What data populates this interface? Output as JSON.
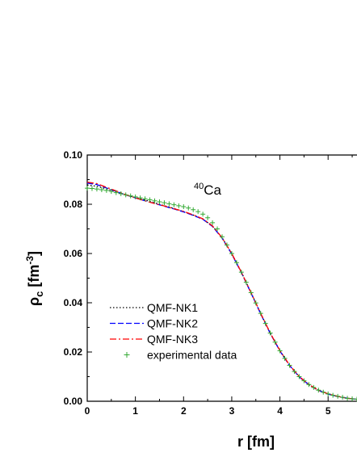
{
  "chart_data": {
    "type": "line",
    "title": "",
    "xlabel": "r [fm]",
    "ylabel": {
      "main": "ρ",
      "sub": "c",
      "unit": " [fm",
      "exp": "-3",
      "close": "]"
    },
    "xlim": [
      0,
      5.6
    ],
    "ylim": [
      0,
      0.1
    ],
    "xticks": [
      0,
      1,
      2,
      3,
      4,
      5
    ],
    "xtick_labels": [
      "0",
      "1",
      "2",
      "3",
      "4",
      "5"
    ],
    "yticks": [
      0,
      0.02,
      0.04,
      0.06,
      0.08,
      0.1
    ],
    "ytick_labels": [
      "0.00",
      "0.02",
      "0.04",
      "0.06",
      "0.08",
      "0.10"
    ],
    "grid": false,
    "legend_position": "bottom-left",
    "annotation": {
      "sup": "40",
      "text": "Ca"
    },
    "series": [
      {
        "name": "QMF-NK1",
        "style": "dotted",
        "color": "#000000",
        "x": [
          0,
          0.2,
          0.4,
          0.6,
          0.8,
          1.0,
          1.2,
          1.4,
          1.6,
          1.8,
          2.0,
          2.2,
          2.4,
          2.6,
          2.8,
          3.0,
          3.2,
          3.4,
          3.6,
          3.8,
          4.0,
          4.2,
          4.4,
          4.6,
          4.8,
          5.0,
          5.2,
          5.4,
          5.6
        ],
        "y": [
          0.0878,
          0.0873,
          0.0862,
          0.085,
          0.0838,
          0.0828,
          0.0817,
          0.0806,
          0.0794,
          0.0783,
          0.077,
          0.0756,
          0.074,
          0.0711,
          0.0664,
          0.06,
          0.0524,
          0.0441,
          0.0357,
          0.0277,
          0.0205,
          0.0146,
          0.01,
          0.0068,
          0.0045,
          0.003,
          0.002,
          0.0012,
          0.0008
        ]
      },
      {
        "name": "QMF-NK2",
        "style": "dashed",
        "color": "#0000ff",
        "x": [
          0,
          0.2,
          0.4,
          0.6,
          0.8,
          1.0,
          1.2,
          1.4,
          1.6,
          1.8,
          2.0,
          2.2,
          2.4,
          2.6,
          2.8,
          3.0,
          3.2,
          3.4,
          3.6,
          3.8,
          4.0,
          4.2,
          4.4,
          4.6,
          4.8,
          5.0,
          5.2,
          5.4,
          5.6
        ],
        "y": [
          0.0886,
          0.088,
          0.0866,
          0.0852,
          0.0838,
          0.0826,
          0.0814,
          0.0803,
          0.0792,
          0.0781,
          0.0769,
          0.0755,
          0.0739,
          0.071,
          0.0662,
          0.0598,
          0.0522,
          0.0439,
          0.0355,
          0.0275,
          0.0204,
          0.0145,
          0.0099,
          0.0067,
          0.0044,
          0.0029,
          0.0019,
          0.0012,
          0.0008
        ]
      },
      {
        "name": "QMF-NK3",
        "style": "dashdot",
        "color": "#ff0000",
        "x": [
          0,
          0.2,
          0.4,
          0.6,
          0.8,
          1.0,
          1.2,
          1.4,
          1.6,
          1.8,
          2.0,
          2.2,
          2.4,
          2.6,
          2.8,
          3.0,
          3.2,
          3.4,
          3.6,
          3.8,
          4.0,
          4.2,
          4.4,
          4.6,
          4.8,
          5.0,
          5.2,
          5.4,
          5.6
        ],
        "y": [
          0.089,
          0.0884,
          0.0869,
          0.0854,
          0.0839,
          0.0826,
          0.0814,
          0.0803,
          0.0793,
          0.0782,
          0.0771,
          0.0757,
          0.0741,
          0.0712,
          0.0664,
          0.06,
          0.0524,
          0.0441,
          0.0357,
          0.0277,
          0.0206,
          0.0147,
          0.0101,
          0.0068,
          0.0045,
          0.003,
          0.002,
          0.0012,
          0.0008
        ]
      },
      {
        "name": "experimental data",
        "style": "markers",
        "marker": "+",
        "color": "#33aa33",
        "x": [
          0,
          0.1,
          0.2,
          0.3,
          0.4,
          0.5,
          0.6,
          0.7,
          0.8,
          0.9,
          1.0,
          1.1,
          1.2,
          1.3,
          1.4,
          1.5,
          1.6,
          1.7,
          1.8,
          1.9,
          2.0,
          2.1,
          2.2,
          2.3,
          2.4,
          2.5,
          2.6,
          2.7,
          2.8,
          2.9,
          3.0,
          3.1,
          3.2,
          3.3,
          3.4,
          3.5,
          3.6,
          3.7,
          3.8,
          3.9,
          4.0,
          4.1,
          4.2,
          4.3,
          4.4,
          4.5,
          4.6,
          4.7,
          4.8,
          4.9,
          5.0,
          5.1,
          5.2,
          5.3,
          5.4,
          5.5,
          5.6
        ],
        "y": [
          0.0865,
          0.0864,
          0.0862,
          0.0859,
          0.0856,
          0.0852,
          0.0847,
          0.0843,
          0.0838,
          0.0834,
          0.083,
          0.0826,
          0.0822,
          0.0818,
          0.0814,
          0.081,
          0.0806,
          0.0802,
          0.0798,
          0.0794,
          0.079,
          0.0785,
          0.0778,
          0.077,
          0.076,
          0.0745,
          0.0725,
          0.07,
          0.0668,
          0.0635,
          0.06,
          0.0563,
          0.0524,
          0.0483,
          0.0441,
          0.0399,
          0.0357,
          0.0316,
          0.0277,
          0.024,
          0.0205,
          0.0174,
          0.0146,
          0.0121,
          0.01,
          0.0083,
          0.0068,
          0.0056,
          0.0045,
          0.0037,
          0.003,
          0.0024,
          0.002,
          0.0016,
          0.0012,
          0.001,
          0.0008
        ]
      }
    ]
  }
}
